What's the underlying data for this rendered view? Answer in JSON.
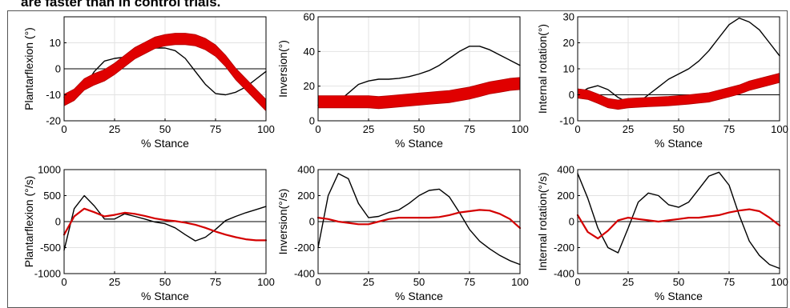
{
  "caption": "are faster than in control trials.",
  "colors": {
    "control": "#000000",
    "intervention": "#d40000",
    "intervention_band": "#e00000"
  },
  "chart_data": [
    {
      "type": "line",
      "xlabel": "% Stance",
      "ylabel": "Plantarflexion (°)",
      "xlim": [
        0,
        100
      ],
      "ylim": [
        -20,
        20
      ],
      "xticks": [
        0,
        25,
        50,
        75,
        100
      ],
      "yticks": [
        -20,
        -10,
        0,
        10
      ],
      "grid": true,
      "zero_line": true,
      "band_width": 2.2,
      "series": [
        {
          "style": "black-line",
          "x": [
            0,
            5,
            10,
            15,
            20,
            25,
            30,
            35,
            40,
            45,
            50,
            55,
            60,
            65,
            70,
            75,
            80,
            85,
            90,
            95,
            100
          ],
          "values": [
            -11,
            -10,
            -7,
            -1,
            3,
            4,
            4.5,
            6,
            7.5,
            8,
            8,
            7,
            4,
            -1,
            -6,
            -9.5,
            -10,
            -9,
            -7,
            -4,
            -1
          ]
        },
        {
          "style": "red-band",
          "x": [
            0,
            5,
            10,
            15,
            20,
            25,
            30,
            35,
            40,
            45,
            50,
            55,
            60,
            65,
            70,
            75,
            80,
            85,
            90,
            95,
            100
          ],
          "values": [
            -12,
            -10,
            -6,
            -4,
            -2.5,
            0,
            3,
            6,
            8,
            10,
            11,
            11.5,
            11.5,
            11,
            9.5,
            7,
            3,
            -2,
            -6,
            -10,
            -14
          ]
        }
      ]
    },
    {
      "type": "line",
      "xlabel": "% Stance",
      "ylabel": "Inversion(°)",
      "xlim": [
        0,
        100
      ],
      "ylim": [
        0,
        60
      ],
      "xticks": [
        0,
        25,
        50,
        75,
        100
      ],
      "yticks": [
        0,
        20,
        40,
        60
      ],
      "grid": true,
      "zero_line": false,
      "band_width": 3.5,
      "series": [
        {
          "style": "black-line",
          "x": [
            0,
            5,
            10,
            15,
            20,
            25,
            30,
            35,
            40,
            45,
            50,
            55,
            60,
            65,
            70,
            75,
            80,
            85,
            90,
            95,
            100
          ],
          "values": [
            9,
            9,
            11,
            16,
            21,
            23,
            24,
            24,
            24.5,
            25.5,
            27,
            29,
            32,
            36,
            40,
            43,
            43,
            41,
            38,
            35,
            32
          ]
        },
        {
          "style": "red-band",
          "x": [
            0,
            5,
            10,
            15,
            20,
            25,
            30,
            35,
            40,
            45,
            50,
            55,
            60,
            65,
            70,
            75,
            80,
            85,
            90,
            95,
            100
          ],
          "values": [
            11,
            11,
            11,
            11,
            11,
            11,
            10.5,
            11,
            11.5,
            12,
            12.5,
            13,
            13.5,
            14,
            15,
            16,
            17.5,
            19,
            20,
            21,
            21.5
          ]
        }
      ]
    },
    {
      "type": "line",
      "xlabel": "% Stance",
      "ylabel": "Internal rotation(°)",
      "xlim": [
        0,
        100
      ],
      "ylim": [
        -10,
        30
      ],
      "xticks": [
        0,
        25,
        50,
        75,
        100
      ],
      "yticks": [
        -10,
        0,
        10,
        20,
        30
      ],
      "grid": true,
      "zero_line": true,
      "band_width": 1.8,
      "series": [
        {
          "style": "black-line",
          "x": [
            0,
            5,
            10,
            15,
            20,
            25,
            30,
            35,
            40,
            45,
            50,
            55,
            60,
            65,
            70,
            75,
            80,
            85,
            90,
            95,
            100
          ],
          "values": [
            0,
            2.5,
            3.5,
            2,
            -1,
            -3,
            -3,
            0,
            3,
            6,
            8,
            10,
            13,
            17,
            22,
            27,
            29.5,
            28,
            25,
            20,
            15
          ]
        },
        {
          "style": "red-band",
          "x": [
            0,
            5,
            10,
            15,
            20,
            25,
            30,
            35,
            40,
            45,
            50,
            55,
            60,
            65,
            70,
            75,
            80,
            85,
            90,
            95,
            100
          ],
          "values": [
            0.5,
            0,
            -1.5,
            -3.2,
            -3.8,
            -3.2,
            -3,
            -2.8,
            -2.6,
            -2.4,
            -2.1,
            -1.8,
            -1.4,
            -1,
            0,
            1,
            2,
            3.5,
            4.5,
            5.5,
            6.5
          ]
        }
      ]
    },
    {
      "type": "line",
      "xlabel": "% Stance",
      "ylabel": "Plantarflexion (°/s)",
      "xlim": [
        0,
        100
      ],
      "ylim": [
        -1000,
        1000
      ],
      "xticks": [
        0,
        25,
        50,
        75,
        100
      ],
      "yticks": [
        -1000,
        -500,
        0,
        500,
        1000
      ],
      "grid": true,
      "zero_line": true,
      "band_width": 0,
      "series": [
        {
          "style": "black-line",
          "x": [
            0,
            5,
            10,
            15,
            20,
            25,
            30,
            35,
            40,
            45,
            50,
            55,
            60,
            65,
            70,
            75,
            80,
            85,
            90,
            95,
            100
          ],
          "values": [
            -550,
            250,
            500,
            300,
            50,
            50,
            150,
            100,
            50,
            -10,
            -40,
            -120,
            -250,
            -370,
            -300,
            -150,
            20,
            100,
            170,
            230,
            290
          ]
        },
        {
          "style": "red-line",
          "x": [
            0,
            5,
            10,
            15,
            20,
            25,
            30,
            35,
            40,
            45,
            50,
            55,
            60,
            65,
            70,
            75,
            80,
            85,
            90,
            95,
            100
          ],
          "values": [
            -250,
            100,
            250,
            180,
            100,
            130,
            170,
            150,
            110,
            60,
            30,
            10,
            -20,
            -60,
            -120,
            -190,
            -250,
            -300,
            -340,
            -360,
            -360
          ]
        }
      ]
    },
    {
      "type": "line",
      "xlabel": "% Stance",
      "ylabel": "Inversion(°/s)",
      "xlim": [
        0,
        100
      ],
      "ylim": [
        -400,
        400
      ],
      "xticks": [
        0,
        25,
        50,
        75,
        100
      ],
      "yticks": [
        -400,
        -200,
        0,
        200,
        400
      ],
      "grid": true,
      "zero_line": true,
      "band_width": 0,
      "series": [
        {
          "style": "black-line",
          "x": [
            0,
            5,
            10,
            15,
            20,
            25,
            30,
            35,
            40,
            45,
            50,
            55,
            60,
            65,
            70,
            75,
            80,
            85,
            90,
            95,
            100
          ],
          "values": [
            -200,
            200,
            370,
            330,
            140,
            30,
            40,
            70,
            90,
            140,
            200,
            240,
            250,
            190,
            70,
            -60,
            -150,
            -210,
            -260,
            -300,
            -330
          ]
        },
        {
          "style": "red-line",
          "x": [
            0,
            5,
            10,
            15,
            20,
            25,
            30,
            35,
            40,
            45,
            50,
            55,
            60,
            65,
            70,
            75,
            80,
            85,
            90,
            95,
            100
          ],
          "values": [
            30,
            20,
            0,
            -10,
            -20,
            -20,
            0,
            20,
            30,
            30,
            30,
            30,
            35,
            50,
            70,
            80,
            90,
            85,
            60,
            20,
            -50
          ]
        }
      ]
    },
    {
      "type": "line",
      "xlabel": "% Stance",
      "ylabel": "Internal rotation(°/s)",
      "xlim": [
        0,
        100
      ],
      "ylim": [
        -400,
        400
      ],
      "xticks": [
        0,
        25,
        50,
        75,
        100
      ],
      "yticks": [
        -400,
        -200,
        0,
        200,
        400
      ],
      "grid": true,
      "zero_line": true,
      "band_width": 0,
      "series": [
        {
          "style": "black-line",
          "x": [
            0,
            5,
            10,
            15,
            20,
            25,
            30,
            35,
            40,
            45,
            50,
            55,
            60,
            65,
            70,
            75,
            80,
            85,
            90,
            95,
            100
          ],
          "values": [
            370,
            180,
            -50,
            -200,
            -240,
            -50,
            150,
            220,
            200,
            130,
            110,
            150,
            250,
            350,
            380,
            280,
            50,
            -150,
            -260,
            -330,
            -360
          ]
        },
        {
          "style": "red-line",
          "x": [
            0,
            5,
            10,
            15,
            20,
            25,
            30,
            35,
            40,
            45,
            50,
            55,
            60,
            65,
            70,
            75,
            80,
            85,
            90,
            95,
            100
          ],
          "values": [
            50,
            -80,
            -130,
            -70,
            10,
            30,
            20,
            10,
            0,
            10,
            20,
            30,
            30,
            40,
            50,
            70,
            85,
            95,
            80,
            30,
            -30
          ]
        }
      ]
    }
  ]
}
